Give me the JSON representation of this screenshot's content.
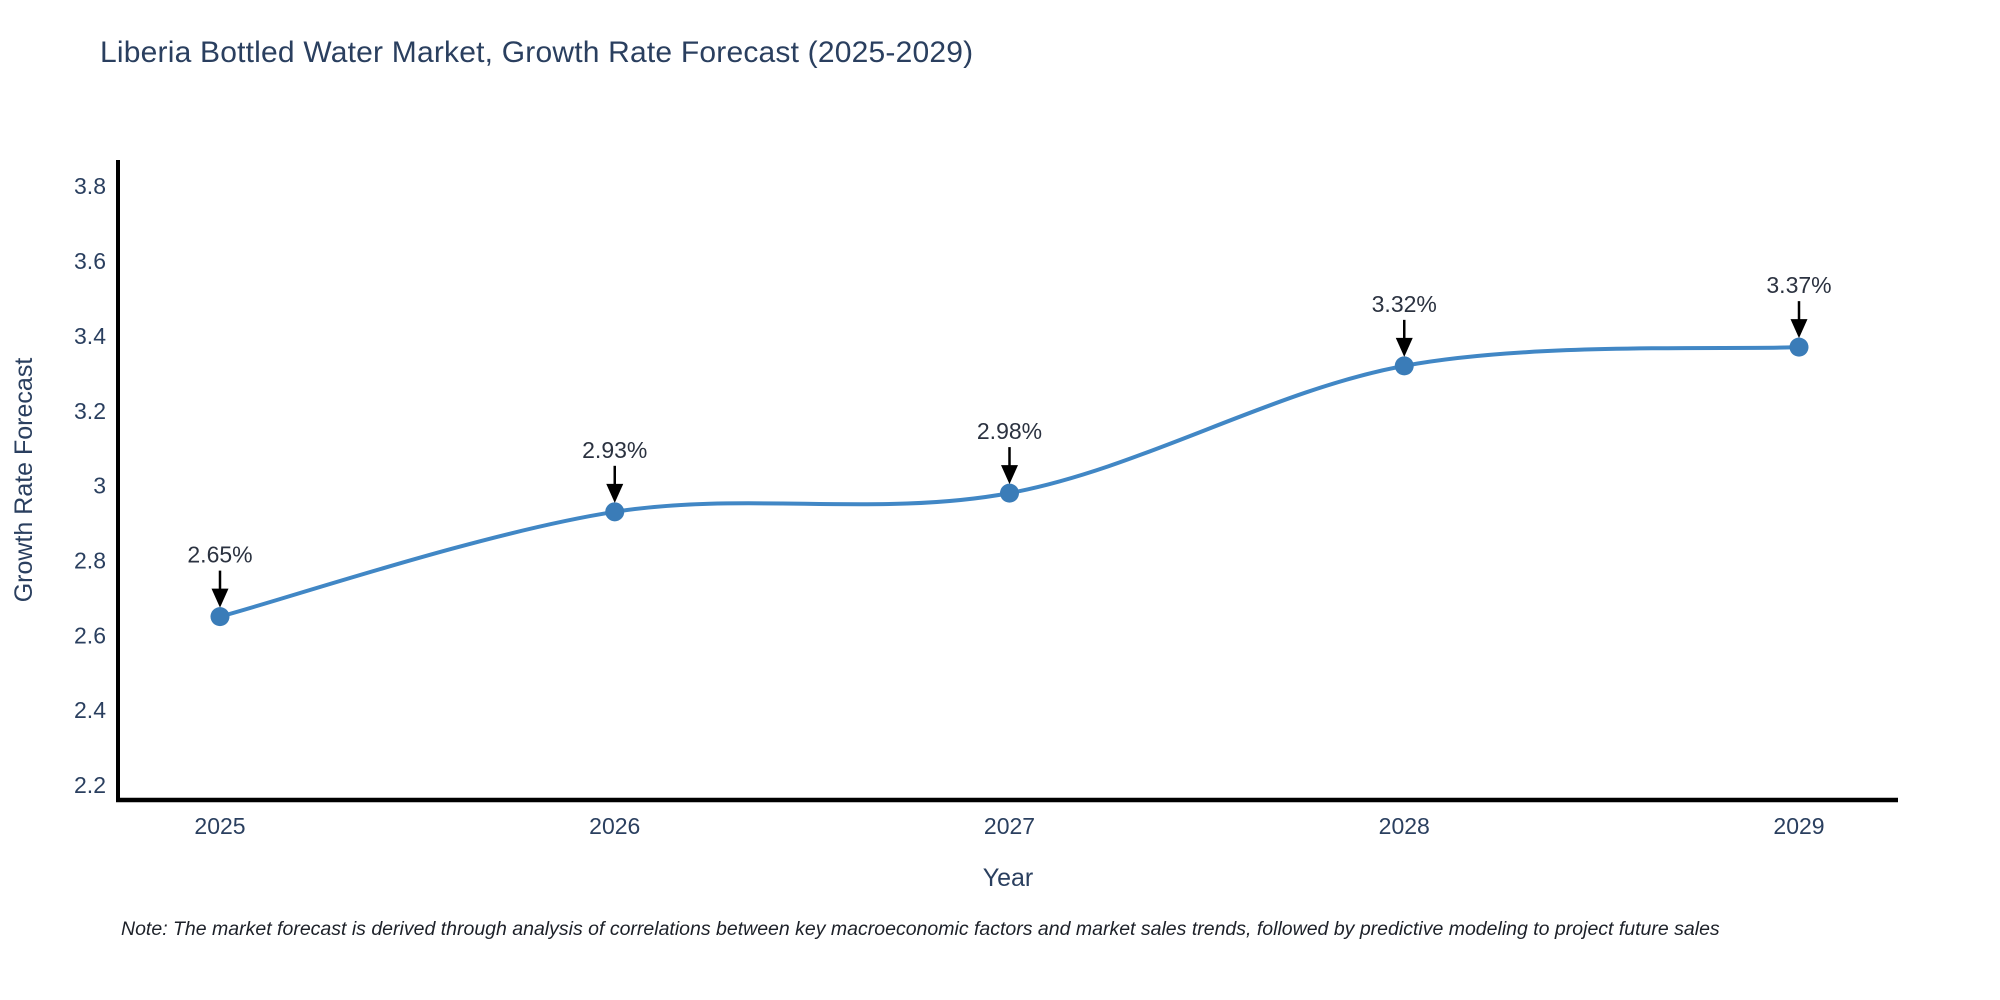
{
  "page": {
    "title": "Liberia Bottled Water Market, Growth Rate Forecast (2025-2029)",
    "note": "Note: The market forecast is derived through analysis of correlations between key macroeconomic factors and market sales trends, followed by predictive modeling to project future sales"
  },
  "chart_data": {
    "type": "line",
    "title": "Liberia Bottled Water Market, Growth Rate Forecast (2025-2029)",
    "categories": [
      "2025",
      "2026",
      "2027",
      "2028",
      "2029"
    ],
    "values": [
      2.65,
      2.93,
      2.98,
      3.32,
      3.37
    ],
    "point_labels": [
      "2.65%",
      "2.93%",
      "2.98%",
      "3.32%",
      "3.37%"
    ],
    "xlabel": "Year",
    "ylabel": "Growth Rate Forecast",
    "ylim": [
      2.16,
      3.87
    ],
    "yticks": [
      2.2,
      2.4,
      2.6,
      2.8,
      3,
      3.2,
      3.4,
      3.6,
      3.8
    ],
    "grid": false,
    "legend": "none",
    "line_shape": "spline",
    "marker": "circle",
    "annotation_arrows": true,
    "colors": {
      "line": "#4187c5",
      "marker": "#3a7cb8",
      "arrow": "#000000",
      "axis": "#000000",
      "tick_labels": "#2a3f5f",
      "axis_titles": "#2a3f5f",
      "annotation_text": "#2b3240",
      "background": "#ffffff"
    }
  }
}
